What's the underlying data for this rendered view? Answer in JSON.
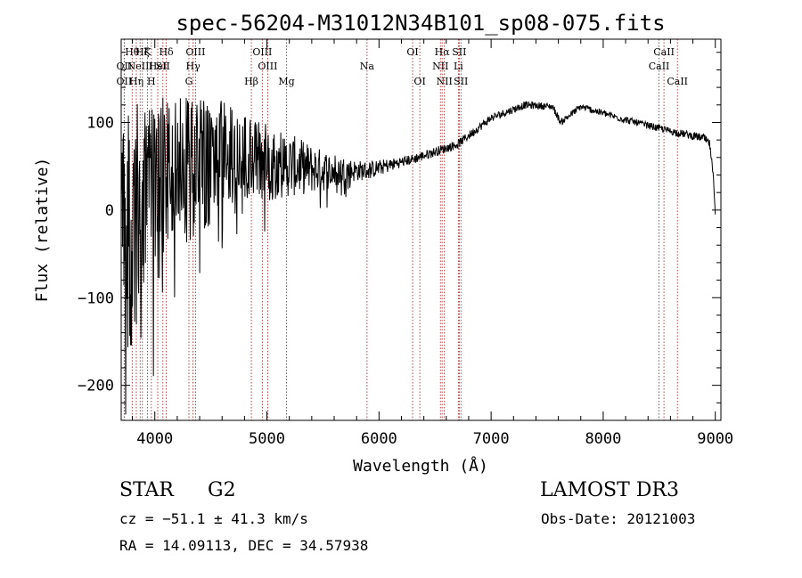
{
  "chart_data": {
    "type": "line",
    "title": "spec-56204-M31012N34B101_sp08-075.fits",
    "xlabel": "Wavelength (Å)",
    "ylabel": "Flux (relative)",
    "xlim": [
      3700,
      9050
    ],
    "ylim": [
      -240,
      195
    ],
    "x_ticks": [
      {
        "value": 4000,
        "label": "4000"
      },
      {
        "value": 5000,
        "label": "5000"
      },
      {
        "value": 6000,
        "label": "6000"
      },
      {
        "value": 7000,
        "label": "7000"
      },
      {
        "value": 8000,
        "label": "8000"
      },
      {
        "value": 9000,
        "label": "9000"
      }
    ],
    "y_ticks": [
      {
        "value": 100,
        "label": "100"
      },
      {
        "value": 0,
        "label": "0"
      },
      {
        "value": -100,
        "label": "−100"
      },
      {
        "value": -200,
        "label": "−200"
      }
    ],
    "continuum": {
      "x": [
        3700,
        3900,
        4200,
        4600,
        5000,
        5500,
        5900,
        6300,
        6700,
        7000,
        7300,
        7550,
        7620,
        7800,
        8200,
        8600,
        8900,
        8950,
        8980,
        9000
      ],
      "y": [
        -40,
        10,
        40,
        60,
        55,
        45,
        45,
        58,
        75,
        105,
        120,
        118,
        100,
        118,
        103,
        90,
        82,
        75,
        40,
        0
      ]
    },
    "noise": {
      "x": [
        3700,
        4000,
        4300,
        4700,
        5000,
        5400,
        5800,
        6200,
        6800,
        7500,
        8500,
        9000
      ],
      "amplitude": [
        140,
        110,
        85,
        60,
        45,
        28,
        12,
        6,
        5,
        4,
        4,
        5
      ]
    },
    "spectral_lines": [
      {
        "wavelength": 3727,
        "label": "OII",
        "row": 1
      },
      {
        "wavelength": 3727,
        "label": "OII",
        "row": 2
      },
      {
        "wavelength": 3798,
        "label": "Hθ",
        "row": 0
      },
      {
        "wavelength": 3835,
        "label": "Hη",
        "row": 2
      },
      {
        "wavelength": 3869,
        "label": "NeIII",
        "row": 1
      },
      {
        "wavelength": 3889,
        "label": "Hζ",
        "row": 0
      },
      {
        "wavelength": 3934,
        "label": "K",
        "row": 0
      },
      {
        "wavelength": 3969,
        "label": "H",
        "row": 2
      },
      {
        "wavelength": 4026,
        "label": "HeI",
        "row": 1
      },
      {
        "wavelength": 4072,
        "label": "SII",
        "row": 1
      },
      {
        "wavelength": 4102,
        "label": "Hδ",
        "row": 0
      },
      {
        "wavelength": 4304,
        "label": "G",
        "row": 2
      },
      {
        "wavelength": 4341,
        "label": "Hγ",
        "row": 1
      },
      {
        "wavelength": 4363,
        "label": "OIII",
        "row": 0
      },
      {
        "wavelength": 4861,
        "label": "Hβ",
        "row": 2
      },
      {
        "wavelength": 4959,
        "label": "OIII",
        "row": 0
      },
      {
        "wavelength": 5007,
        "label": "OIII",
        "row": 1
      },
      {
        "wavelength": 5175,
        "label": "Mg",
        "row": 2
      },
      {
        "wavelength": 5893,
        "label": "Na",
        "row": 1
      },
      {
        "wavelength": 6300,
        "label": "OI",
        "row": 0
      },
      {
        "wavelength": 6364,
        "label": "OI",
        "row": 2
      },
      {
        "wavelength": 6548,
        "label": "NII",
        "row": 1
      },
      {
        "wavelength": 6563,
        "label": "Hα",
        "row": 0
      },
      {
        "wavelength": 6583,
        "label": "NII",
        "row": 2
      },
      {
        "wavelength": 6708,
        "label": "Li",
        "row": 1
      },
      {
        "wavelength": 6716,
        "label": "SII",
        "row": 0
      },
      {
        "wavelength": 6731,
        "label": "SII",
        "row": 2
      },
      {
        "wavelength": 8498,
        "label": "CaII",
        "row": 1
      },
      {
        "wavelength": 8542,
        "label": "CaII",
        "row": 0
      },
      {
        "wavelength": 8662,
        "label": "CaII",
        "row": 2
      }
    ]
  },
  "info": {
    "class_label": "STAR",
    "subclass": "G2",
    "survey": "LAMOST DR3",
    "redshift_line": "cz = −51.1 ± 41.3 km/s",
    "obs_date_line": "Obs-Date: 20121003",
    "coords_line": "RA =  14.09113, DEC =  34.57938"
  },
  "colors": {
    "line_marker": "#b03030",
    "spectrum": "#000000",
    "axis": "#000000"
  }
}
